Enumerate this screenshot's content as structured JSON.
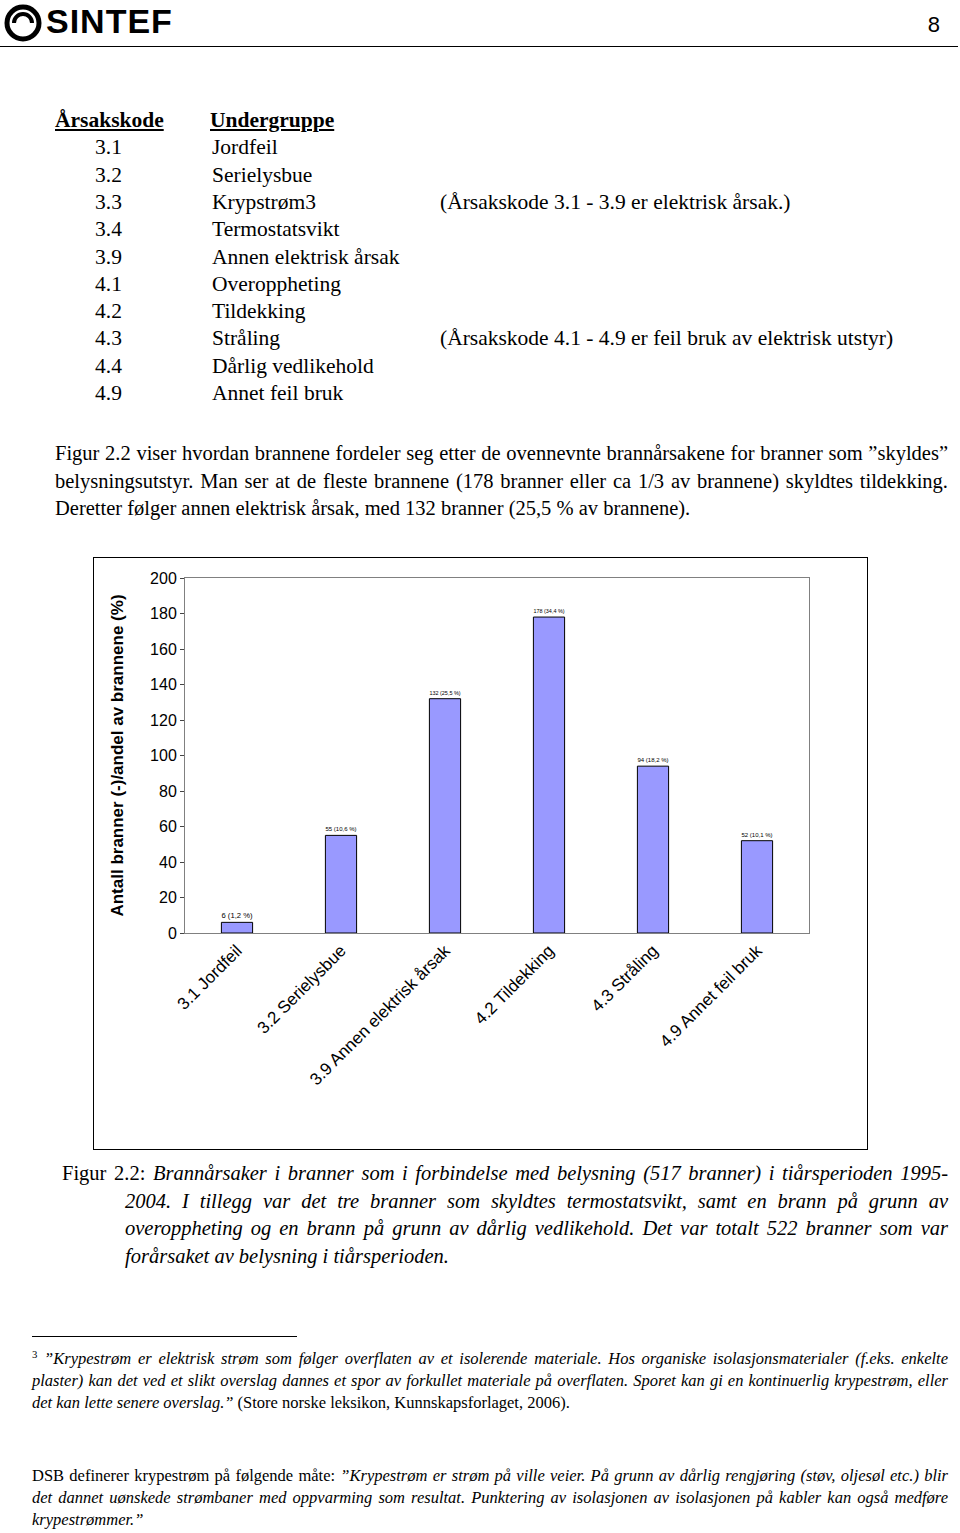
{
  "header": {
    "logo": "SINTEF",
    "page": "8"
  },
  "code_table": {
    "headers": [
      "Årsakskode",
      "Undergruppe"
    ],
    "rows": [
      {
        "code": "3.1",
        "name": "Jordfeil"
      },
      {
        "code": "3.2",
        "name": "Serielysbue"
      },
      {
        "code": "3.3",
        "name": "Krypstrøm",
        "footnote": "3",
        "note": "(Årsakskode 3.1 - 3.9 er elektrisk årsak.)"
      },
      {
        "code": "3.4",
        "name": "Termostatsvikt"
      },
      {
        "code": "3.9",
        "name": "Annen elektrisk årsak"
      },
      {
        "code": "4.1",
        "name": "Overoppheting"
      },
      {
        "code": "4.2",
        "name": "Tildekking"
      },
      {
        "code": "4.3",
        "name": "Stråling",
        "note": "(Årsakskode 4.1 - 4.9 er feil bruk av elektrisk utstyr)"
      },
      {
        "code": "4.4",
        "name": "Dårlig vedlikehold"
      },
      {
        "code": "4.9",
        "name": "Annet feil bruk"
      }
    ]
  },
  "paragraph": "Figur 2.2 viser hvordan brannene fordeler seg etter de ovennevnte brannårsakene for branner som ”skyldes” belysningsutstyr. Man ser at de fleste brannene (178 branner eller ca 1/3 av brannene) skyldtes tildekking. Deretter følger annen elektrisk årsak, med 132 branner (25,5 % av brannene).",
  "chart_data": {
    "type": "bar",
    "y_label": "Antall branner (-)/andel av brannene (%)",
    "categories": [
      "3.1 Jordfeil",
      "3.2 Serielysbue",
      "3.9 Annen elektrisk årsak",
      "4.2 Tildekking",
      "4.3 Stråling",
      "4.9 Annet feil bruk"
    ],
    "values": [
      6,
      55,
      132,
      178,
      94,
      52
    ],
    "value_labels": [
      "6 (1,2 %)",
      "55 (10,6 %)",
      "132 (25,5 %)",
      "178 (34,4 %)",
      "94 (18,2 %)",
      "52 (10,1 %)"
    ],
    "data_labels": true,
    "color": "#9999ff",
    "ylim": [
      0,
      200
    ],
    "yticks": [
      0,
      20,
      40,
      60,
      80,
      100,
      120,
      140,
      160,
      180,
      200
    ],
    "grid": false
  },
  "caption": {
    "label": "Figur 2.2:",
    "text": "Brannårsaker i branner som i forbindelse med belysning (517 branner) i tiårsperioden 1995-2004. I tillegg var det tre branner som skyldtes termostatsvikt, samt en brann på grunn av overoppheting og en brann på grunn av dårlig vedlikehold. Det var totalt 522 branner som var forårsaket av belysning i tiårsperioden."
  },
  "footnotes": [
    {
      "marker": "3",
      "parts": [
        {
          "text": "”Krypestrøm er elektrisk strøm som følger overflaten av et isolerende materiale. Hos organiske isolasjonsmaterialer (f.eks. enkelte plaster) kan det ved et slikt overslag dannes et spor av forkullet materiale på overflaten. Sporet kan gi en kontinuerlig krypestrøm, eller det kan lette senere overslag.”",
          "italic": true
        },
        {
          "text": " (Store norske leksikon, Kunnskapsforlaget, 2006).",
          "italic": false
        }
      ]
    },
    {
      "parts": [
        {
          "text": "DSB definerer krypestrøm på følgende måte: ",
          "italic": false
        },
        {
          "text": "”Krypestrøm er strøm på ville veier. På grunn av dårlig rengjøring (støv, oljesøl etc.) blir det dannet uønskede strømbaner med oppvarming som resultat. Punktering av isolasjonen av isolasjonen på kabler kan også medføre krypestrømmer.”",
          "italic": true
        }
      ]
    }
  ]
}
